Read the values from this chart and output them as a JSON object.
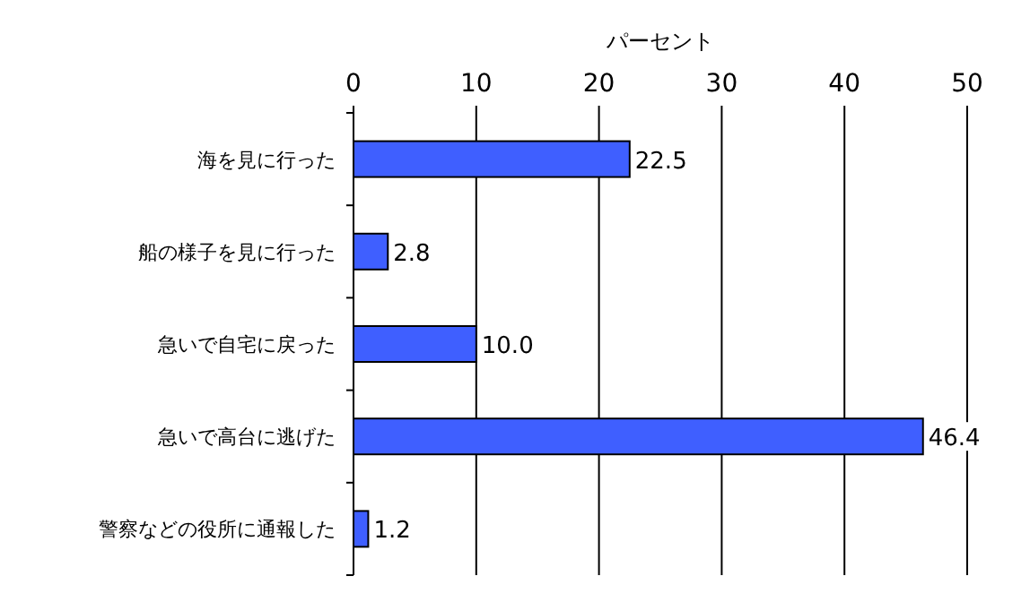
{
  "chart_data": {
    "type": "bar",
    "orientation": "horizontal",
    "xlabel": "パーセント",
    "categories": [
      "海を見に行った",
      "船の様子を見に行った",
      "急いで自宅に戻った",
      "急いで高台に逃げた",
      "警察などの役所に通報した"
    ],
    "values": [
      22.5,
      2.8,
      10.0,
      46.4,
      1.2
    ],
    "value_labels": [
      "22.5",
      "2.8",
      "10.0",
      "46.4",
      "1.2"
    ],
    "color": "#3f5fff",
    "xlim": [
      0,
      50
    ],
    "xticks": [
      0,
      10,
      20,
      30,
      40,
      50
    ],
    "grid": "x"
  }
}
